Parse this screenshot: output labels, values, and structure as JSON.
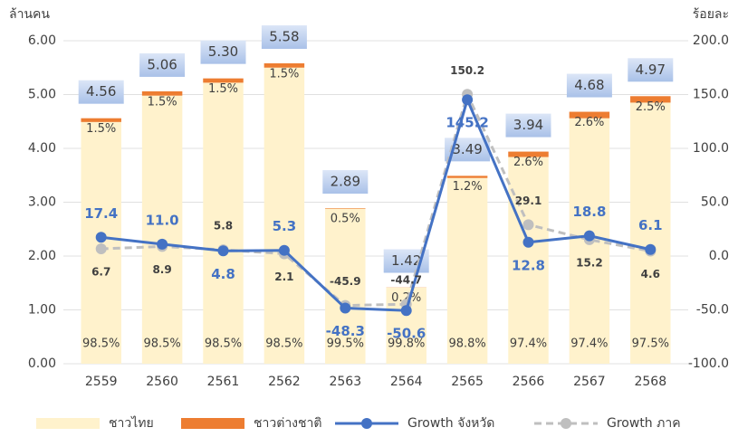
{
  "chart_data": {
    "type": "bar_line",
    "y_label": "ล้านคน",
    "y2_label": "ร้อยละ",
    "categories": [
      "2559",
      "2560",
      "2561",
      "2562",
      "2563",
      "2564",
      "2565",
      "2566",
      "2567",
      "2568"
    ],
    "totals": [
      4.56,
      5.06,
      5.3,
      5.58,
      2.89,
      1.42,
      3.49,
      3.94,
      4.68,
      4.97
    ],
    "total_labels": [
      "4.56",
      "5.06",
      "5.30",
      "5.58",
      "2.89",
      "1.42",
      "3.49",
      "3.94",
      "4.68",
      "4.97"
    ],
    "series": [
      {
        "name": "ชาวไทย",
        "kind": "bar",
        "color": "#fff2cc",
        "values": [
          4.49,
          4.98,
          5.22,
          5.5,
          2.88,
          1.417,
          3.45,
          3.84,
          4.56,
          4.85
        ],
        "shares": [
          98.5,
          98.5,
          98.5,
          98.5,
          99.5,
          99.8,
          98.8,
          97.4,
          97.4,
          97.5
        ],
        "share_labels": [
          "98.5%",
          "98.5%",
          "98.5%",
          "98.5%",
          "99.5%",
          "99.8%",
          "98.8%",
          "97.4%",
          "97.4%",
          "97.5%"
        ]
      },
      {
        "name": "ชาวต่างชาติ",
        "kind": "bar",
        "color": "#ed7d31",
        "values": [
          0.07,
          0.08,
          0.08,
          0.08,
          0.01,
          0.003,
          0.04,
          0.1,
          0.12,
          0.12
        ],
        "shares": [
          1.5,
          1.5,
          1.5,
          1.5,
          0.5,
          0.2,
          1.2,
          2.6,
          2.6,
          2.5
        ],
        "share_labels": [
          "1.5%",
          "1.5%",
          "1.5%",
          "1.5%",
          "0.5%",
          "0.2%",
          "1.2%",
          "2.6%",
          "2.6%",
          "2.5%"
        ]
      },
      {
        "name": "Growth จังหวัด",
        "kind": "line",
        "axis": "y2",
        "color": "#4472c4",
        "dashed": false,
        "values": [
          17.4,
          11.0,
          4.8,
          5.3,
          -48.3,
          -50.6,
          145.2,
          12.8,
          18.8,
          6.1
        ],
        "value_labels": [
          "17.4",
          "11.0",
          "4.8",
          "5.3",
          "-48.3",
          "-50.6",
          "145.2",
          "12.8",
          "18.8",
          "6.1"
        ]
      },
      {
        "name": "Growth ภาค",
        "kind": "line",
        "axis": "y2",
        "color": "#bfbfbf",
        "dashed": true,
        "values": [
          6.7,
          8.9,
          5.8,
          2.1,
          -45.9,
          -44.7,
          150.2,
          29.1,
          15.2,
          4.6
        ],
        "value_labels": [
          "6.7",
          "8.9",
          "5.8",
          "2.1",
          "-45.9",
          "-44.7",
          "150.2",
          "29.1",
          "15.2",
          "4.6"
        ]
      }
    ],
    "ylim": [
      0,
      6
    ],
    "yticks": [
      {
        "value": 0,
        "label": "0.00"
      },
      {
        "value": 1,
        "label": "1.00"
      },
      {
        "value": 2,
        "label": "2.00"
      },
      {
        "value": 3,
        "label": "3.00"
      },
      {
        "value": 4,
        "label": "4.00"
      },
      {
        "value": 5,
        "label": "5.00"
      },
      {
        "value": 6,
        "label": "6.00"
      }
    ],
    "y2lim": [
      -100,
      200
    ],
    "y2ticks": [
      {
        "value": -100,
        "label": "-100.0"
      },
      {
        "value": -50,
        "label": "-50.0"
      },
      {
        "value": 0,
        "label": "0.0"
      },
      {
        "value": 50,
        "label": "50.0"
      },
      {
        "value": 100,
        "label": "100.0"
      },
      {
        "value": 150,
        "label": "150.0"
      },
      {
        "value": 200,
        "label": "200.0"
      }
    ],
    "legend": "bottom"
  }
}
